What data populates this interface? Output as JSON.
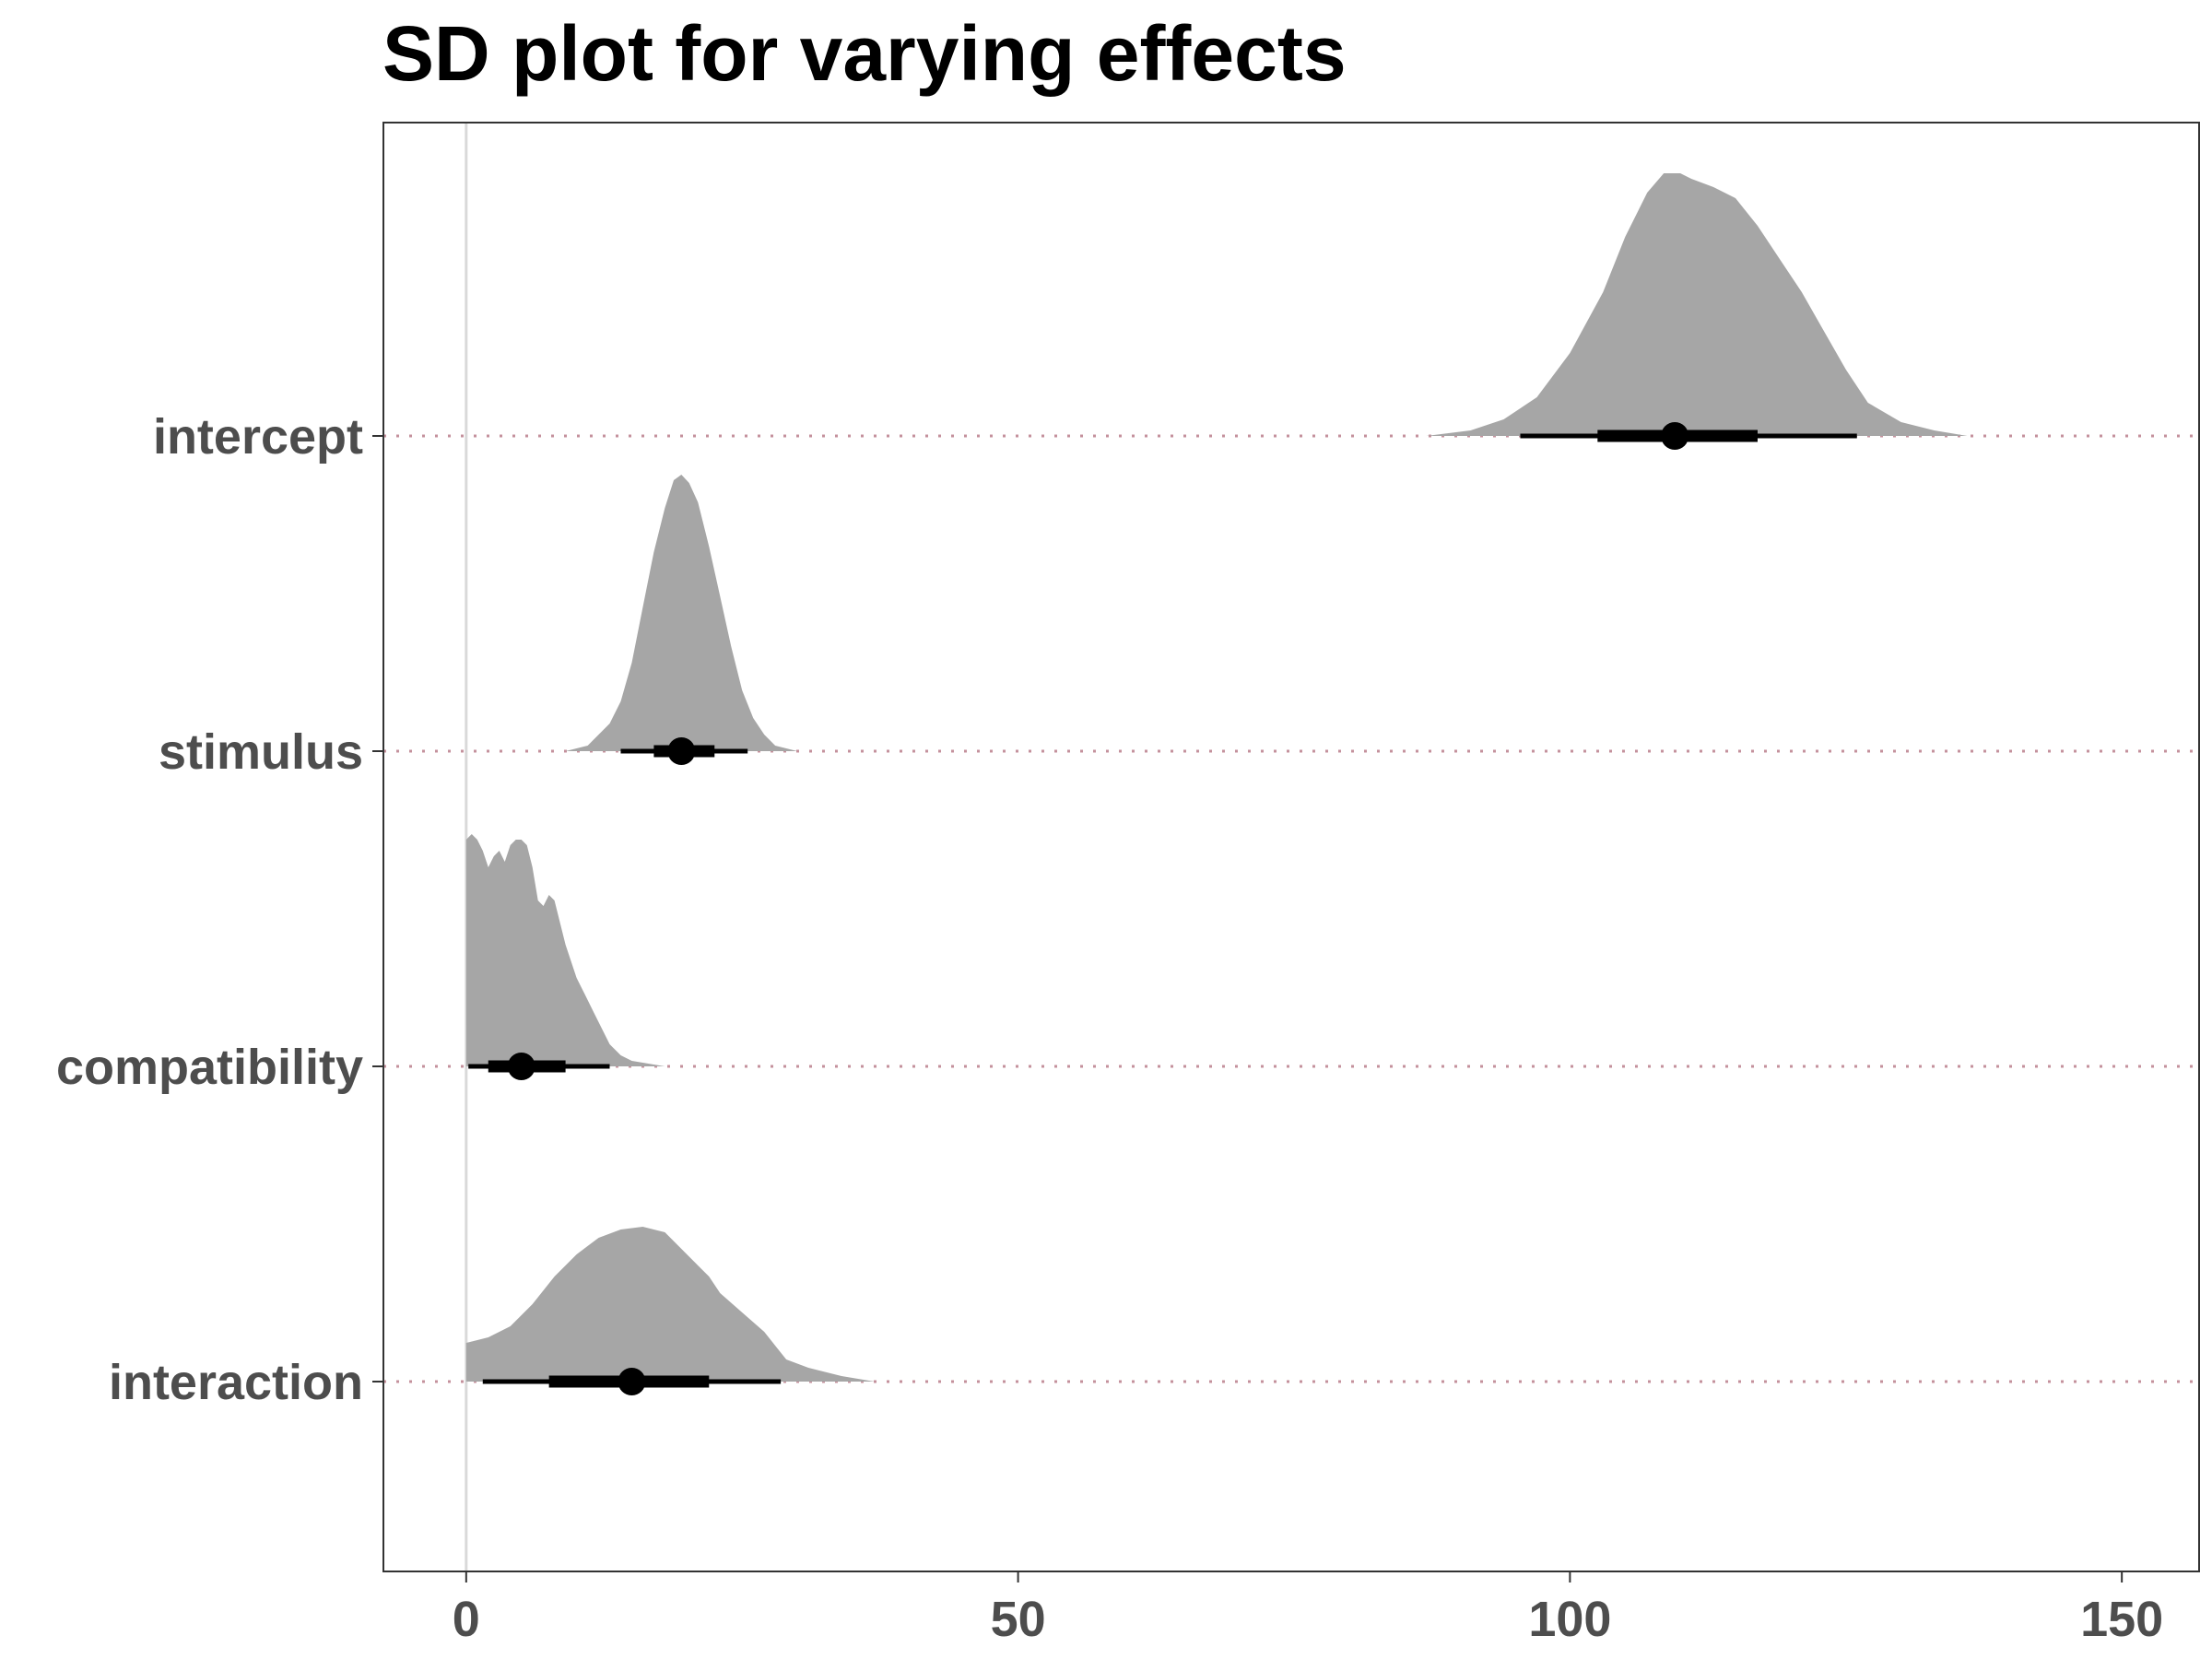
{
  "chart_data": {
    "type": "density-interval",
    "title": "SD plot for varying effects",
    "xlabel": "",
    "ylabel": "",
    "xlim": [
      -7.5,
      157
    ],
    "x_ticks": [
      0,
      50,
      100,
      150
    ],
    "x_tick_labels": [
      "0",
      "50",
      "100",
      "150"
    ],
    "reference_line_x": 0,
    "grid": false,
    "categories": [
      "intercept",
      "stimulus",
      "compatibility",
      "interaction"
    ],
    "series": [
      {
        "category": "intercept",
        "median": 109.5,
        "interval_66": [
          102.5,
          117
        ],
        "interval_95": [
          95.5,
          126
        ],
        "density": [
          [
            87,
            0.0
          ],
          [
            91,
            0.02
          ],
          [
            94,
            0.06
          ],
          [
            97,
            0.14
          ],
          [
            100,
            0.3
          ],
          [
            103,
            0.52
          ],
          [
            105,
            0.72
          ],
          [
            107,
            0.88
          ],
          [
            108.5,
            0.95
          ],
          [
            110,
            0.95
          ],
          [
            111,
            0.93
          ],
          [
            113,
            0.9
          ],
          [
            115,
            0.86
          ],
          [
            117,
            0.76
          ],
          [
            119,
            0.64
          ],
          [
            121,
            0.52
          ],
          [
            123,
            0.38
          ],
          [
            125,
            0.24
          ],
          [
            127,
            0.12
          ],
          [
            130,
            0.05
          ],
          [
            133,
            0.02
          ],
          [
            136,
            0.0
          ]
        ]
      },
      {
        "category": "stimulus",
        "median": 19.5,
        "interval_66": [
          17,
          22.5
        ],
        "interval_95": [
          14,
          25.5
        ],
        "density": [
          [
            9,
            0.0
          ],
          [
            11,
            0.02
          ],
          [
            13,
            0.1
          ],
          [
            14,
            0.18
          ],
          [
            15,
            0.32
          ],
          [
            16,
            0.52
          ],
          [
            17,
            0.72
          ],
          [
            18,
            0.88
          ],
          [
            18.8,
            0.98
          ],
          [
            19.5,
            1.0
          ],
          [
            20.2,
            0.97
          ],
          [
            21,
            0.9
          ],
          [
            22,
            0.74
          ],
          [
            23,
            0.56
          ],
          [
            24,
            0.38
          ],
          [
            25,
            0.22
          ],
          [
            26,
            0.12
          ],
          [
            27,
            0.06
          ],
          [
            28,
            0.02
          ],
          [
            30,
            0.0
          ]
        ]
      },
      {
        "category": "compatibility",
        "median": 5,
        "interval_66": [
          2,
          9
        ],
        "interval_95": [
          0.2,
          13
        ],
        "density": [
          [
            0,
            0.82
          ],
          [
            0.5,
            0.84
          ],
          [
            1,
            0.82
          ],
          [
            1.5,
            0.78
          ],
          [
            2,
            0.72
          ],
          [
            2.5,
            0.76
          ],
          [
            3,
            0.78
          ],
          [
            3.5,
            0.74
          ],
          [
            4,
            0.8
          ],
          [
            4.5,
            0.82
          ],
          [
            5,
            0.82
          ],
          [
            5.5,
            0.8
          ],
          [
            6,
            0.72
          ],
          [
            6.5,
            0.6
          ],
          [
            7,
            0.58
          ],
          [
            7.5,
            0.62
          ],
          [
            8,
            0.6
          ],
          [
            8.5,
            0.52
          ],
          [
            9,
            0.44
          ],
          [
            9.5,
            0.38
          ],
          [
            10,
            0.32
          ],
          [
            10.5,
            0.28
          ],
          [
            11,
            0.24
          ],
          [
            11.5,
            0.2
          ],
          [
            12,
            0.16
          ],
          [
            12.5,
            0.12
          ],
          [
            13,
            0.08
          ],
          [
            14,
            0.04
          ],
          [
            15,
            0.02
          ],
          [
            18,
            0.0
          ]
        ]
      },
      {
        "category": "interaction",
        "median": 15,
        "interval_66": [
          7.5,
          22
        ],
        "interval_95": [
          1.5,
          28.5
        ],
        "density": [
          [
            0,
            0.14
          ],
          [
            2,
            0.16
          ],
          [
            4,
            0.2
          ],
          [
            6,
            0.28
          ],
          [
            8,
            0.38
          ],
          [
            10,
            0.46
          ],
          [
            12,
            0.52
          ],
          [
            14,
            0.55
          ],
          [
            16,
            0.56
          ],
          [
            18,
            0.54
          ],
          [
            20,
            0.46
          ],
          [
            22,
            0.38
          ],
          [
            23,
            0.32
          ],
          [
            25,
            0.25
          ],
          [
            27,
            0.18
          ],
          [
            28,
            0.13
          ],
          [
            29,
            0.08
          ],
          [
            31,
            0.05
          ],
          [
            34,
            0.02
          ],
          [
            37,
            0.0
          ]
        ]
      }
    ]
  }
}
